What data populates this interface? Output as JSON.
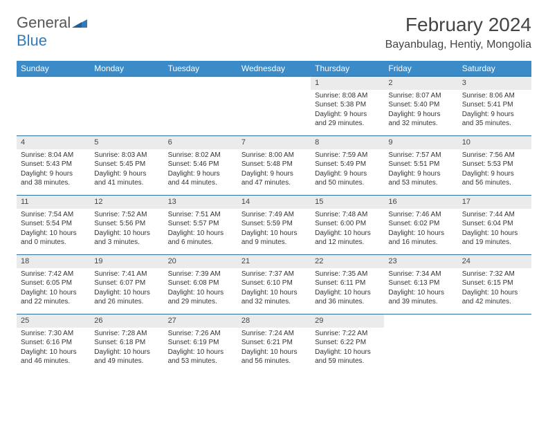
{
  "logo": {
    "text1": "General",
    "text2": "Blue"
  },
  "title": "February 2024",
  "location": "Bayanbulag, Hentiy, Mongolia",
  "colors": {
    "header_bg": "#3b8bc9",
    "header_text": "#ffffff",
    "daynum_bg": "#ebebeb",
    "row_border": "#2f6ca0",
    "logo_accent": "#2f7bbf"
  },
  "weekdays": [
    "Sunday",
    "Monday",
    "Tuesday",
    "Wednesday",
    "Thursday",
    "Friday",
    "Saturday"
  ],
  "leading_blanks": 4,
  "days": [
    {
      "n": "1",
      "sunrise": "8:08 AM",
      "sunset": "5:38 PM",
      "daylight": "9 hours and 29 minutes."
    },
    {
      "n": "2",
      "sunrise": "8:07 AM",
      "sunset": "5:40 PM",
      "daylight": "9 hours and 32 minutes."
    },
    {
      "n": "3",
      "sunrise": "8:06 AM",
      "sunset": "5:41 PM",
      "daylight": "9 hours and 35 minutes."
    },
    {
      "n": "4",
      "sunrise": "8:04 AM",
      "sunset": "5:43 PM",
      "daylight": "9 hours and 38 minutes."
    },
    {
      "n": "5",
      "sunrise": "8:03 AM",
      "sunset": "5:45 PM",
      "daylight": "9 hours and 41 minutes."
    },
    {
      "n": "6",
      "sunrise": "8:02 AM",
      "sunset": "5:46 PM",
      "daylight": "9 hours and 44 minutes."
    },
    {
      "n": "7",
      "sunrise": "8:00 AM",
      "sunset": "5:48 PM",
      "daylight": "9 hours and 47 minutes."
    },
    {
      "n": "8",
      "sunrise": "7:59 AM",
      "sunset": "5:49 PM",
      "daylight": "9 hours and 50 minutes."
    },
    {
      "n": "9",
      "sunrise": "7:57 AM",
      "sunset": "5:51 PM",
      "daylight": "9 hours and 53 minutes."
    },
    {
      "n": "10",
      "sunrise": "7:56 AM",
      "sunset": "5:53 PM",
      "daylight": "9 hours and 56 minutes."
    },
    {
      "n": "11",
      "sunrise": "7:54 AM",
      "sunset": "5:54 PM",
      "daylight": "10 hours and 0 minutes."
    },
    {
      "n": "12",
      "sunrise": "7:52 AM",
      "sunset": "5:56 PM",
      "daylight": "10 hours and 3 minutes."
    },
    {
      "n": "13",
      "sunrise": "7:51 AM",
      "sunset": "5:57 PM",
      "daylight": "10 hours and 6 minutes."
    },
    {
      "n": "14",
      "sunrise": "7:49 AM",
      "sunset": "5:59 PM",
      "daylight": "10 hours and 9 minutes."
    },
    {
      "n": "15",
      "sunrise": "7:48 AM",
      "sunset": "6:00 PM",
      "daylight": "10 hours and 12 minutes."
    },
    {
      "n": "16",
      "sunrise": "7:46 AM",
      "sunset": "6:02 PM",
      "daylight": "10 hours and 16 minutes."
    },
    {
      "n": "17",
      "sunrise": "7:44 AM",
      "sunset": "6:04 PM",
      "daylight": "10 hours and 19 minutes."
    },
    {
      "n": "18",
      "sunrise": "7:42 AM",
      "sunset": "6:05 PM",
      "daylight": "10 hours and 22 minutes."
    },
    {
      "n": "19",
      "sunrise": "7:41 AM",
      "sunset": "6:07 PM",
      "daylight": "10 hours and 26 minutes."
    },
    {
      "n": "20",
      "sunrise": "7:39 AM",
      "sunset": "6:08 PM",
      "daylight": "10 hours and 29 minutes."
    },
    {
      "n": "21",
      "sunrise": "7:37 AM",
      "sunset": "6:10 PM",
      "daylight": "10 hours and 32 minutes."
    },
    {
      "n": "22",
      "sunrise": "7:35 AM",
      "sunset": "6:11 PM",
      "daylight": "10 hours and 36 minutes."
    },
    {
      "n": "23",
      "sunrise": "7:34 AM",
      "sunset": "6:13 PM",
      "daylight": "10 hours and 39 minutes."
    },
    {
      "n": "24",
      "sunrise": "7:32 AM",
      "sunset": "6:15 PM",
      "daylight": "10 hours and 42 minutes."
    },
    {
      "n": "25",
      "sunrise": "7:30 AM",
      "sunset": "6:16 PM",
      "daylight": "10 hours and 46 minutes."
    },
    {
      "n": "26",
      "sunrise": "7:28 AM",
      "sunset": "6:18 PM",
      "daylight": "10 hours and 49 minutes."
    },
    {
      "n": "27",
      "sunrise": "7:26 AM",
      "sunset": "6:19 PM",
      "daylight": "10 hours and 53 minutes."
    },
    {
      "n": "28",
      "sunrise": "7:24 AM",
      "sunset": "6:21 PM",
      "daylight": "10 hours and 56 minutes."
    },
    {
      "n": "29",
      "sunrise": "7:22 AM",
      "sunset": "6:22 PM",
      "daylight": "10 hours and 59 minutes."
    }
  ],
  "labels": {
    "sunrise": "Sunrise: ",
    "sunset": "Sunset: ",
    "daylight": "Daylight: "
  }
}
